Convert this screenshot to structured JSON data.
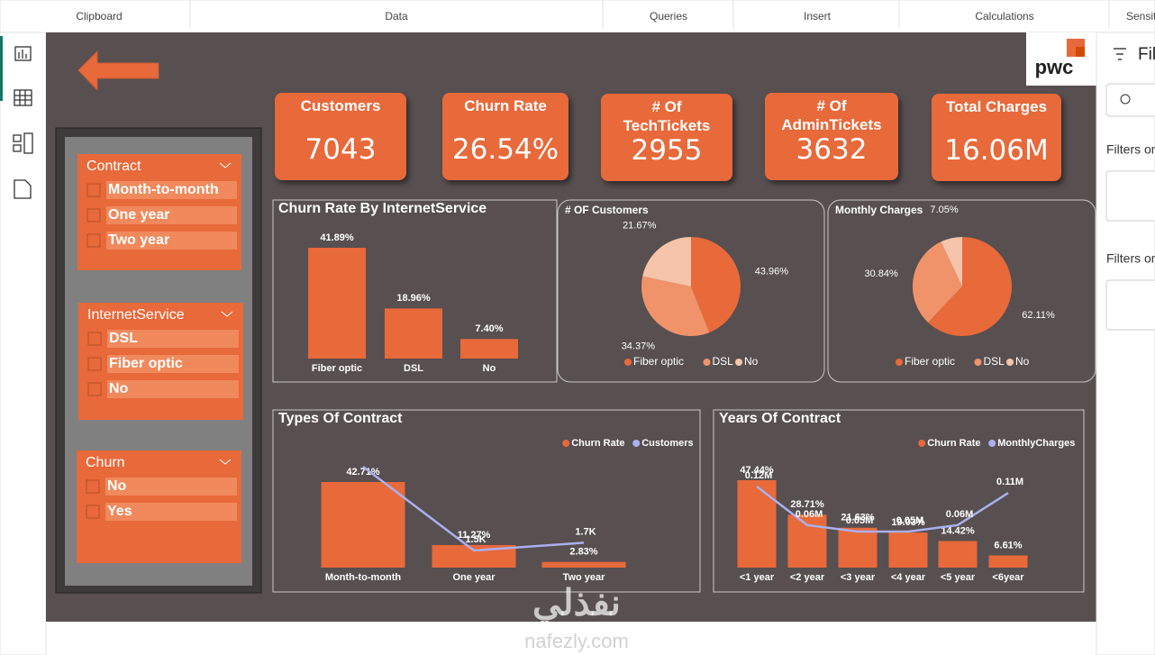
{
  "ribbon": {
    "groups": [
      "Clipboard",
      "Data",
      "Queries",
      "Insert",
      "Calculations",
      "Sensit"
    ]
  },
  "logo": "pwc",
  "kpis": [
    {
      "title": "Customers",
      "value": "7043"
    },
    {
      "title": "Churn Rate",
      "value": "26.54%"
    },
    {
      "title": "# Of TechTickets",
      "value": "2955"
    },
    {
      "title": "# Of AdminTickets",
      "value": "3632"
    },
    {
      "title": "Total Charges",
      "value": "16.06M"
    }
  ],
  "slicers": [
    {
      "title": "Contract",
      "items": [
        "Month-to-month",
        "One year",
        "Two year"
      ]
    },
    {
      "title": "InternetService",
      "items": [
        "DSL",
        "Fiber optic",
        "No"
      ]
    },
    {
      "title": "Churn",
      "items": [
        "No",
        "Yes"
      ]
    }
  ],
  "filters_pane": {
    "title": "Fil",
    "sections": [
      "Filters on",
      "Filters on"
    ]
  },
  "watermark": {
    "arabic": "نفذلي",
    "latin": "nafezly.com"
  },
  "chart_data": [
    {
      "type": "bar",
      "title": "Churn Rate By InternetService",
      "categories": [
        "Fiber optic",
        "DSL",
        "No"
      ],
      "values": [
        41.89,
        18.96,
        7.4
      ],
      "value_labels": [
        "41.89%",
        "18.96%",
        "7.40%"
      ],
      "color": "#e8693a"
    },
    {
      "type": "pie",
      "title": "# OF Customers",
      "categories": [
        "Fiber optic",
        "DSL",
        "No"
      ],
      "values": [
        43.96,
        34.37,
        21.67
      ],
      "value_labels": [
        "43.96%",
        "34.37%",
        "21.67%"
      ],
      "colors": [
        "#e8693a",
        "#f0936a",
        "#f5c4aa"
      ]
    },
    {
      "type": "pie",
      "title": "Monthly Charges",
      "categories": [
        "Fiber optic",
        "DSL",
        "No"
      ],
      "values": [
        62.11,
        30.84,
        7.05
      ],
      "value_labels": [
        "62.11%",
        "30.84%",
        "7.05%"
      ],
      "colors": [
        "#e8693a",
        "#f0936a",
        "#f5c4aa"
      ]
    },
    {
      "type": "combo",
      "title": "Types Of Contract",
      "categories": [
        "Month-to-month",
        "One year",
        "Two year"
      ],
      "series": [
        {
          "name": "Churn Rate",
          "color": "#e8693a",
          "kind": "bar",
          "values": [
            42.71,
            11.27,
            2.83
          ],
          "value_labels": [
            "42.71%",
            "11.27%",
            "2.83%"
          ]
        },
        {
          "name": "Customers",
          "color": "#aab0f0",
          "kind": "line",
          "axis": "y2",
          "values": [
            3875,
            1473,
            1695
          ],
          "value_labels": [
            null,
            "1.5K",
            "1.7K"
          ]
        }
      ]
    },
    {
      "type": "combo",
      "title": "Years Of Contract",
      "categories": [
        "<1 year",
        "<2 year",
        "<3 year",
        "<4 year",
        "<5 year",
        "<6year"
      ],
      "series": [
        {
          "name": "Churn Rate",
          "color": "#e8693a",
          "kind": "bar",
          "values": [
            47.44,
            28.71,
            21.63,
            19.03,
            14.42,
            6.61
          ],
          "value_labels": [
            "47.44%",
            "28.71%",
            "21.63%",
            "19.03%",
            "14.42%",
            "6.61%"
          ]
        },
        {
          "name": "MonthlyCharges",
          "color": "#aab0f0",
          "kind": "line",
          "axis": "y2",
          "values": [
            120000,
            60000,
            50000,
            50000,
            60000,
            110000
          ],
          "value_labels": [
            "0.12M",
            "0.06M",
            "0.05M",
            "0.05M",
            "0.06M",
            "0.11M"
          ]
        }
      ]
    }
  ]
}
